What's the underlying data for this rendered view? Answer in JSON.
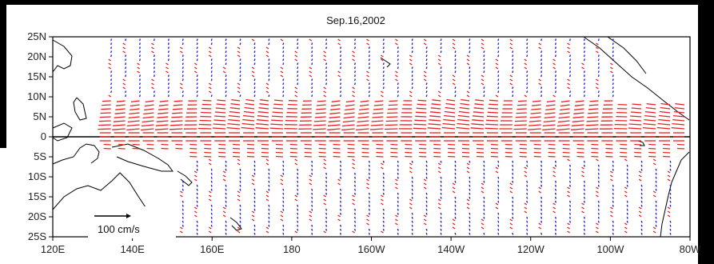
{
  "chart_data": {
    "type": "vector-field",
    "title": "Sep.16,2002",
    "x_ticks": [
      "120E",
      "140E",
      "160E",
      "180",
      "160W",
      "140W",
      "120W",
      "100W",
      "80W"
    ],
    "y_ticks": [
      "25N",
      "20N",
      "15N",
      "10N",
      "5N",
      "0",
      "5S",
      "10S",
      "15S",
      "20S",
      "25S"
    ],
    "lon_range_east": [
      120,
      280
    ],
    "lat_range": [
      -25,
      25
    ],
    "scale_vector_label": "100 cm/s",
    "colors": {
      "westward_current": "#e62020",
      "eastward_current": "#2020c8",
      "coastline": "#000000",
      "equator_line": "#000000"
    }
  }
}
